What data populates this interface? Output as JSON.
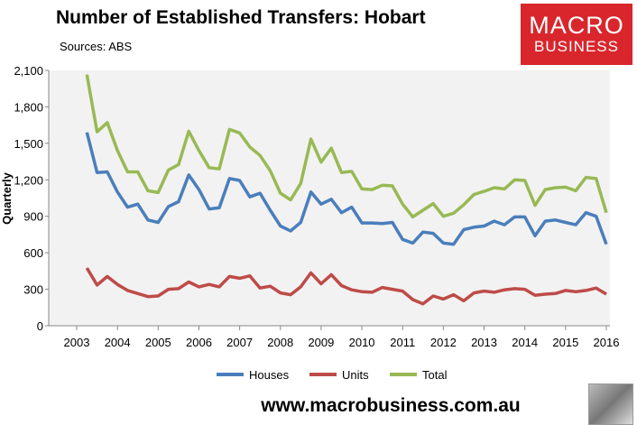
{
  "header": {
    "title": "Number of Established Transfers: Hobart",
    "source": "Sources: ABS"
  },
  "logo": {
    "line1": "MACRO",
    "line2": "BUSINESS"
  },
  "footer": {
    "url": "www.macrobusiness.com.au"
  },
  "chart_data": {
    "type": "line",
    "title": "Number of Established Transfers: Hobart",
    "ylabel": "Quarterly",
    "xlabel": "",
    "ylim": [
      0,
      2100
    ],
    "xlim": [
      2003,
      2016
    ],
    "yticks": [
      "0",
      "300",
      "600",
      "900",
      "1,200",
      "1,500",
      "1,800",
      "2,100"
    ],
    "xticks": [
      "2003",
      "2004",
      "2005",
      "2006",
      "2007",
      "2008",
      "2009",
      "2010",
      "2011",
      "2012",
      "2013",
      "2014",
      "2015",
      "2016"
    ],
    "x_start": 2003.25,
    "x_step": 0.25,
    "legend_position": "bottom",
    "series": [
      {
        "name": "Houses",
        "color": "#4a7ebb",
        "values": [
          1590,
          1260,
          1265,
          1100,
          975,
          1000,
          870,
          850,
          980,
          1020,
          1240,
          1120,
          960,
          970,
          1210,
          1195,
          1060,
          1090,
          950,
          820,
          780,
          850,
          1100,
          1000,
          1040,
          930,
          975,
          845,
          845,
          840,
          850,
          710,
          680,
          770,
          760,
          680,
          670,
          790,
          810,
          820,
          860,
          830,
          895,
          895,
          740,
          860,
          870,
          850,
          830,
          930,
          900,
          670
        ]
      },
      {
        "name": "Units",
        "color": "#be4b48",
        "values": [
          475,
          335,
          405,
          340,
          290,
          265,
          240,
          245,
          300,
          305,
          360,
          320,
          340,
          320,
          405,
          390,
          410,
          310,
          325,
          270,
          255,
          320,
          435,
          345,
          420,
          330,
          295,
          280,
          275,
          315,
          300,
          285,
          215,
          180,
          245,
          220,
          255,
          205,
          270,
          285,
          275,
          295,
          305,
          300,
          250,
          260,
          265,
          290,
          280,
          290,
          310,
          260
        ]
      },
      {
        "name": "Total",
        "color": "#98b954",
        "values": [
          2065,
          1595,
          1670,
          1440,
          1265,
          1265,
          1110,
          1095,
          1280,
          1325,
          1600,
          1440,
          1300,
          1290,
          1615,
          1585,
          1470,
          1400,
          1275,
          1090,
          1035,
          1170,
          1535,
          1345,
          1460,
          1260,
          1270,
          1125,
          1120,
          1155,
          1150,
          1000,
          895,
          950,
          1005,
          900,
          925,
          995,
          1080,
          1105,
          1135,
          1125,
          1200,
          1195,
          990,
          1120,
          1135,
          1140,
          1110,
          1220,
          1210,
          930
        ]
      }
    ]
  }
}
